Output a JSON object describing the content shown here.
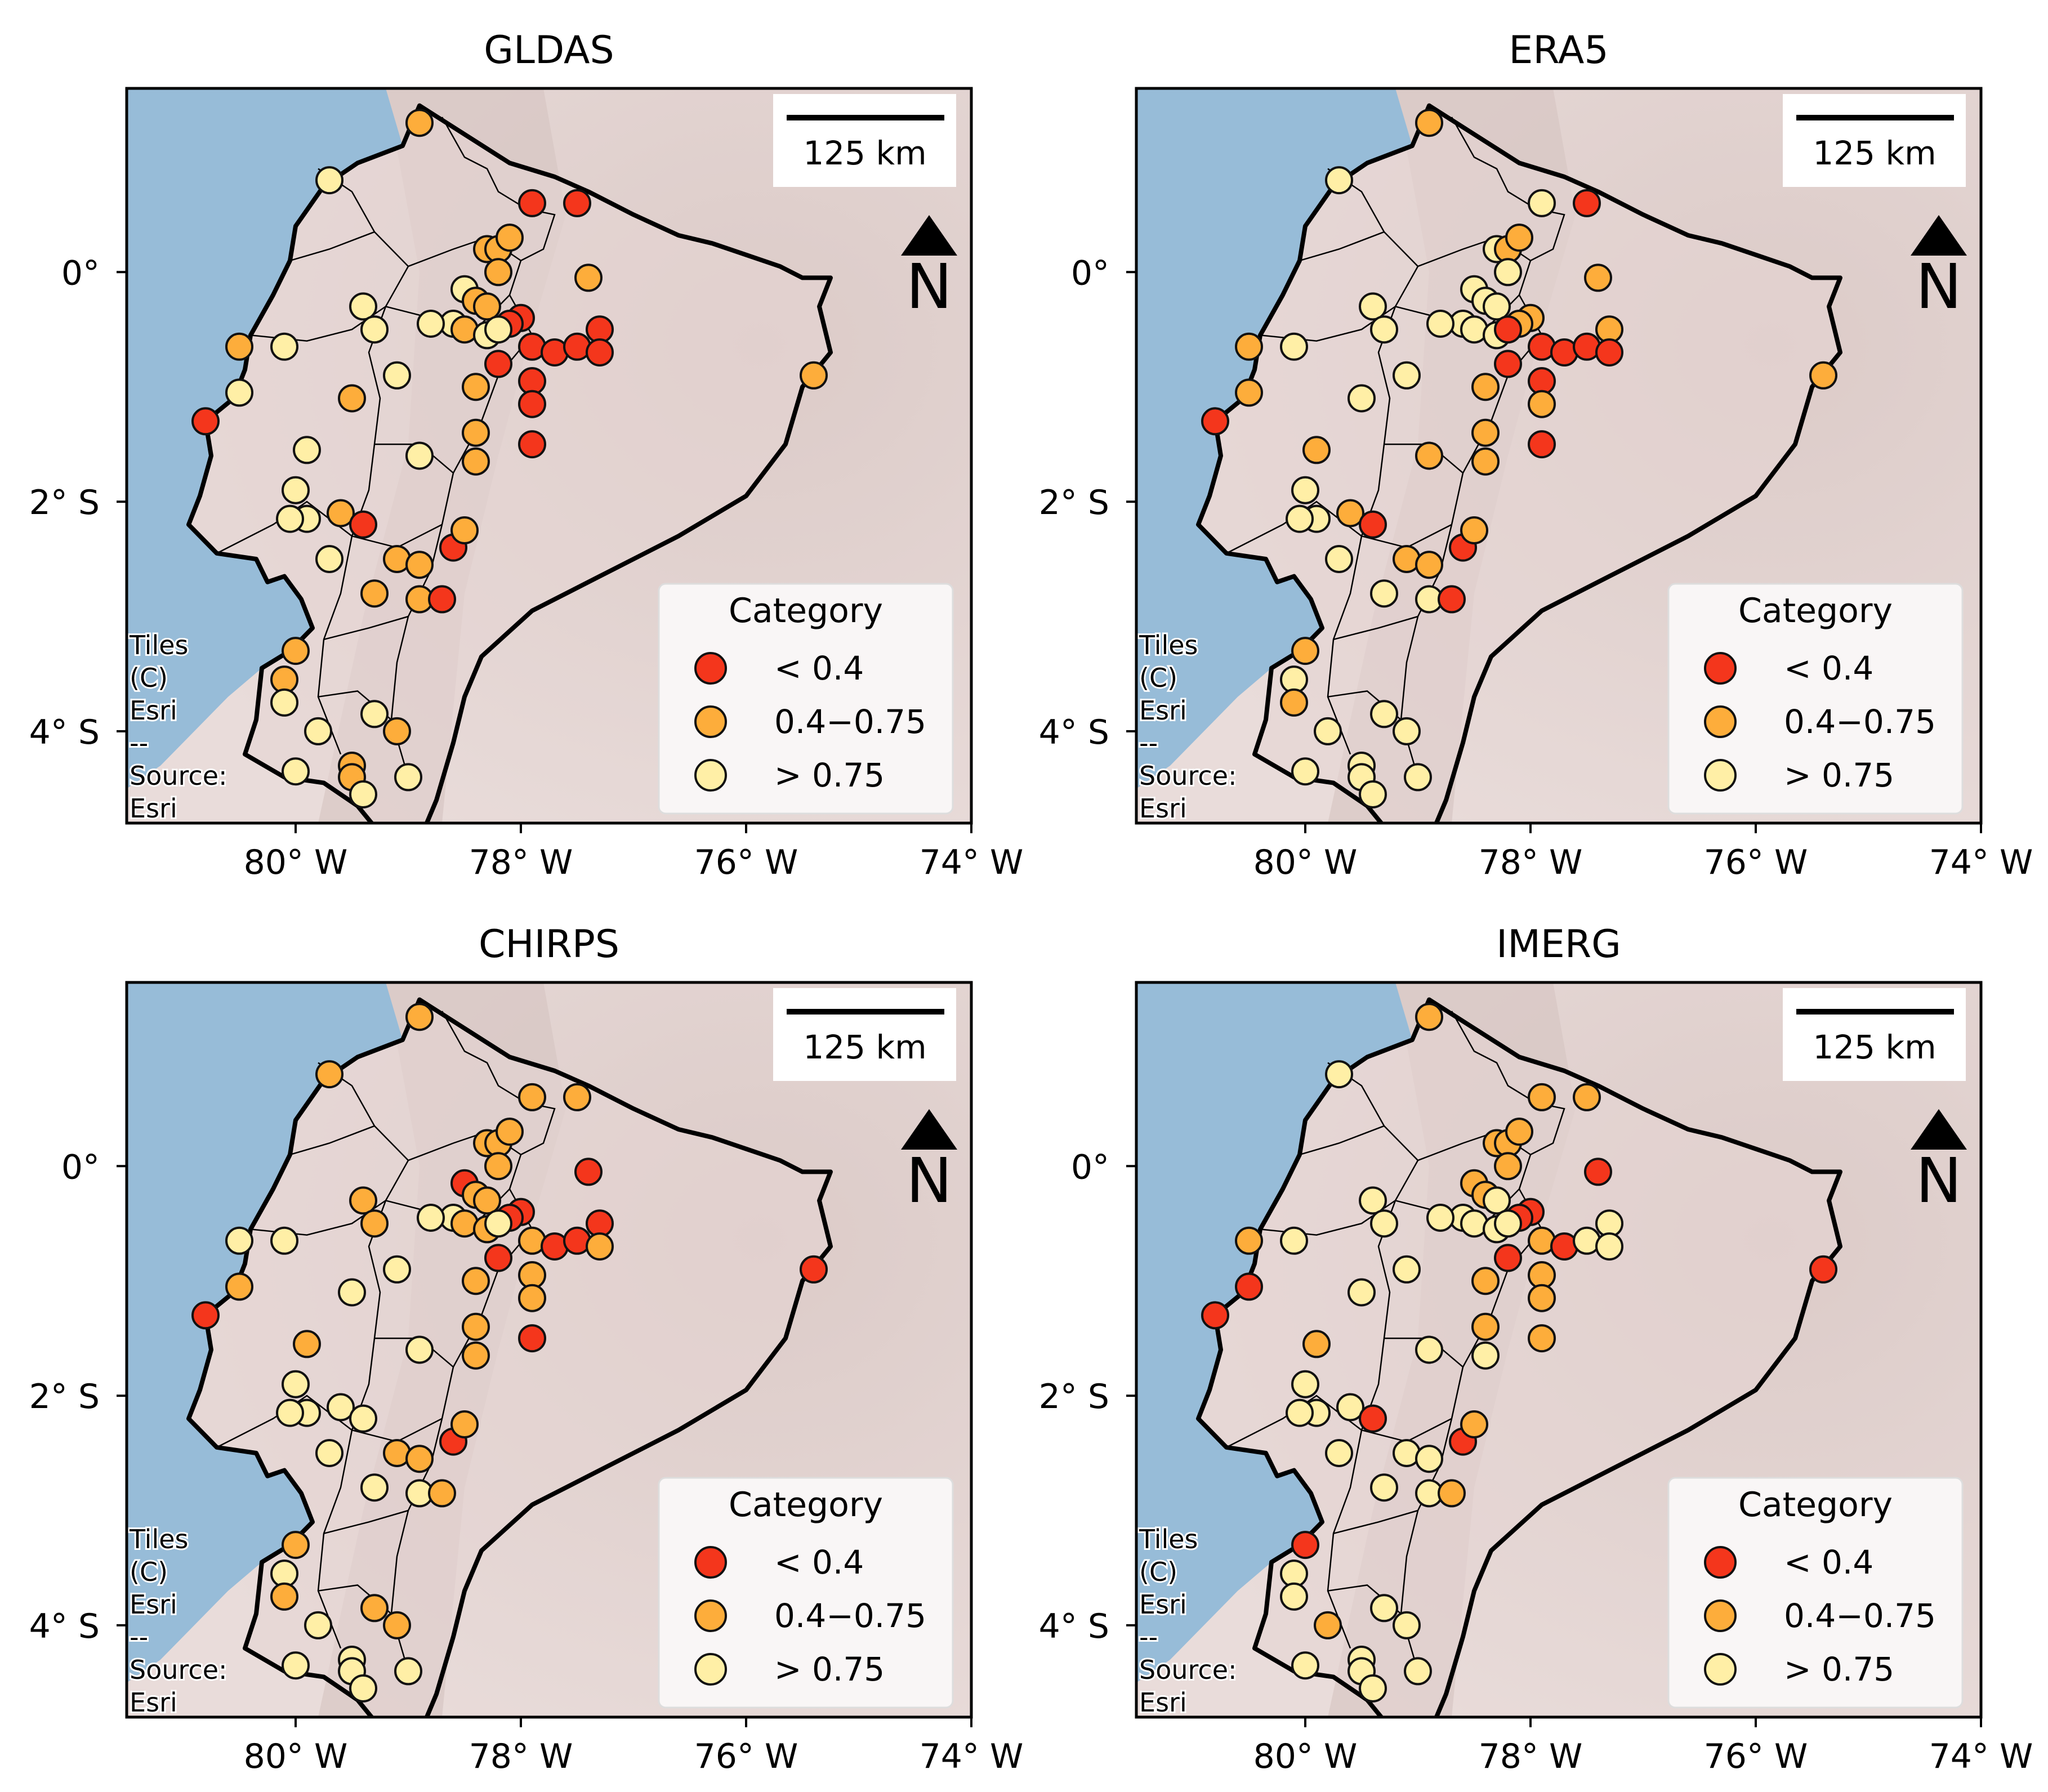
{
  "figure": {
    "panels": [
      {
        "title": "GLDAS"
      },
      {
        "title": "ERA5"
      },
      {
        "title": "CHIRPS"
      },
      {
        "title": "IMERG"
      }
    ],
    "x_ticks": [
      "80° W",
      "78° W",
      "76° W",
      "74° W"
    ],
    "y_ticks": [
      "0°",
      "2° S",
      "4° S"
    ],
    "scale_bar_label": "125 km",
    "north_arrow_label": "N",
    "attribution": [
      "Tiles",
      "(C)",
      "Esri",
      "--",
      "Source:",
      "Esri"
    ],
    "legend": {
      "title": "Category",
      "items": [
        {
          "label": "< 0.4",
          "color": "#f4361c"
        },
        {
          "label": "0.4−0.75",
          "color": "#fdad3b"
        },
        {
          "label": "> 0.75",
          "color": "#ffefa6"
        }
      ]
    },
    "colors": {
      "ocean": "#97bcd8",
      "land": "#e6d6d4",
      "border": "#000000",
      "marker_edge": "#111111"
    }
  },
  "chart_data": [
    {
      "type": "map",
      "title": "GLDAS",
      "xlim": [
        -81.5,
        -74
      ],
      "ylim": [
        -4.8,
        1.6
      ],
      "stations": [
        [
          -79.0,
          -4.4,
          2
        ],
        [
          -78.9,
          1.3,
          1
        ],
        [
          -79.7,
          0.8,
          2
        ],
        [
          -77.9,
          0.6,
          0
        ],
        [
          -77.5,
          0.6,
          0
        ],
        [
          -78.3,
          0.2,
          1
        ],
        [
          -78.2,
          0.2,
          1
        ],
        [
          -78.1,
          0.3,
          1
        ],
        [
          -78.2,
          0.0,
          1
        ],
        [
          -77.4,
          -0.05,
          1
        ],
        [
          -78.5,
          -0.15,
          2
        ],
        [
          -78.4,
          -0.25,
          1
        ],
        [
          -78.3,
          -0.3,
          1
        ],
        [
          -78.0,
          -0.4,
          0
        ],
        [
          -78.1,
          -0.45,
          0
        ],
        [
          -78.6,
          -0.45,
          2
        ],
        [
          -78.5,
          -0.5,
          1
        ],
        [
          -78.3,
          -0.55,
          2
        ],
        [
          -78.2,
          -0.5,
          2
        ],
        [
          -77.9,
          -0.65,
          0
        ],
        [
          -77.7,
          -0.7,
          0
        ],
        [
          -77.5,
          -0.65,
          0
        ],
        [
          -77.3,
          -0.5,
          0
        ],
        [
          -77.3,
          -0.7,
          0
        ],
        [
          -78.2,
          -0.8,
          0
        ],
        [
          -77.9,
          -0.95,
          0
        ],
        [
          -77.9,
          -1.15,
          0
        ],
        [
          -77.9,
          -1.5,
          0
        ],
        [
          -78.4,
          -1.0,
          1
        ],
        [
          -78.4,
          -1.4,
          1
        ],
        [
          -78.4,
          -1.65,
          1
        ],
        [
          -75.4,
          -0.9,
          1
        ],
        [
          -80.5,
          -0.65,
          1
        ],
        [
          -80.1,
          -0.65,
          2
        ],
        [
          -80.5,
          -1.05,
          2
        ],
        [
          -80.8,
          -1.3,
          0
        ],
        [
          -79.4,
          -0.3,
          2
        ],
        [
          -79.3,
          -0.5,
          2
        ],
        [
          -79.1,
          -0.9,
          2
        ],
        [
          -79.5,
          -1.1,
          1
        ],
        [
          -79.9,
          -1.55,
          2
        ],
        [
          -78.9,
          -1.6,
          2
        ],
        [
          -80.0,
          -1.9,
          2
        ],
        [
          -79.9,
          -2.15,
          2
        ],
        [
          -79.6,
          -2.1,
          1
        ],
        [
          -79.4,
          -2.2,
          0
        ],
        [
          -79.7,
          -2.5,
          2
        ],
        [
          -79.1,
          -2.5,
          1
        ],
        [
          -78.9,
          -2.55,
          1
        ],
        [
          -79.3,
          -2.8,
          1
        ],
        [
          -78.9,
          -2.85,
          1
        ],
        [
          -78.7,
          -2.85,
          0
        ],
        [
          -78.6,
          -2.4,
          0
        ],
        [
          -78.5,
          -2.25,
          1
        ],
        [
          -80.0,
          -3.3,
          1
        ],
        [
          -80.1,
          -3.55,
          1
        ],
        [
          -80.1,
          -3.75,
          2
        ],
        [
          -79.3,
          -3.85,
          2
        ],
        [
          -79.1,
          -4.0,
          1
        ],
        [
          -79.8,
          -4.0,
          2
        ],
        [
          -79.5,
          -4.3,
          1
        ],
        [
          -79.5,
          -4.4,
          1
        ],
        [
          -80.0,
          -4.35,
          2
        ],
        [
          -79.4,
          -4.55,
          2
        ],
        [
          -80.05,
          -2.15,
          2
        ],
        [
          -78.8,
          -0.45,
          2
        ]
      ]
    },
    {
      "type": "map",
      "title": "ERA5",
      "xlim": [
        -81.5,
        -74
      ],
      "ylim": [
        -4.8,
        1.6
      ],
      "stations": [
        [
          -79.0,
          -4.4,
          2
        ],
        [
          -78.9,
          1.3,
          1
        ],
        [
          -79.7,
          0.8,
          2
        ],
        [
          -77.9,
          0.6,
          2
        ],
        [
          -77.5,
          0.6,
          0
        ],
        [
          -78.3,
          0.2,
          2
        ],
        [
          -78.2,
          0.2,
          1
        ],
        [
          -78.1,
          0.3,
          1
        ],
        [
          -78.2,
          0.0,
          2
        ],
        [
          -77.4,
          -0.05,
          1
        ],
        [
          -78.5,
          -0.15,
          2
        ],
        [
          -78.4,
          -0.25,
          2
        ],
        [
          -78.3,
          -0.3,
          2
        ],
        [
          -78.0,
          -0.4,
          1
        ],
        [
          -78.1,
          -0.45,
          1
        ],
        [
          -78.6,
          -0.45,
          2
        ],
        [
          -78.5,
          -0.5,
          2
        ],
        [
          -78.3,
          -0.55,
          2
        ],
        [
          -78.2,
          -0.5,
          0
        ],
        [
          -77.9,
          -0.65,
          0
        ],
        [
          -77.7,
          -0.7,
          0
        ],
        [
          -77.5,
          -0.65,
          0
        ],
        [
          -77.3,
          -0.5,
          1
        ],
        [
          -77.3,
          -0.7,
          0
        ],
        [
          -78.2,
          -0.8,
          0
        ],
        [
          -77.9,
          -0.95,
          0
        ],
        [
          -77.9,
          -1.15,
          1
        ],
        [
          -77.9,
          -1.5,
          0
        ],
        [
          -78.4,
          -1.0,
          1
        ],
        [
          -78.4,
          -1.4,
          1
        ],
        [
          -78.4,
          -1.65,
          1
        ],
        [
          -75.4,
          -0.9,
          1
        ],
        [
          -80.5,
          -0.65,
          1
        ],
        [
          -80.1,
          -0.65,
          2
        ],
        [
          -80.5,
          -1.05,
          1
        ],
        [
          -80.8,
          -1.3,
          0
        ],
        [
          -79.4,
          -0.3,
          2
        ],
        [
          -79.3,
          -0.5,
          2
        ],
        [
          -79.1,
          -0.9,
          2
        ],
        [
          -79.5,
          -1.1,
          2
        ],
        [
          -79.9,
          -1.55,
          1
        ],
        [
          -78.9,
          -1.6,
          1
        ],
        [
          -80.0,
          -1.9,
          2
        ],
        [
          -79.9,
          -2.15,
          2
        ],
        [
          -79.6,
          -2.1,
          1
        ],
        [
          -79.4,
          -2.2,
          0
        ],
        [
          -79.7,
          -2.5,
          2
        ],
        [
          -79.1,
          -2.5,
          1
        ],
        [
          -78.9,
          -2.55,
          1
        ],
        [
          -79.3,
          -2.8,
          2
        ],
        [
          -78.9,
          -2.85,
          2
        ],
        [
          -78.7,
          -2.85,
          0
        ],
        [
          -78.6,
          -2.4,
          0
        ],
        [
          -78.5,
          -2.25,
          1
        ],
        [
          -80.0,
          -3.3,
          1
        ],
        [
          -80.1,
          -3.55,
          2
        ],
        [
          -80.1,
          -3.75,
          1
        ],
        [
          -79.3,
          -3.85,
          2
        ],
        [
          -79.1,
          -4.0,
          2
        ],
        [
          -79.8,
          -4.0,
          2
        ],
        [
          -79.5,
          -4.3,
          2
        ],
        [
          -79.5,
          -4.4,
          2
        ],
        [
          -80.0,
          -4.35,
          2
        ],
        [
          -79.4,
          -4.55,
          2
        ],
        [
          -80.05,
          -2.15,
          2
        ],
        [
          -78.8,
          -0.45,
          2
        ]
      ]
    },
    {
      "type": "map",
      "title": "CHIRPS",
      "xlim": [
        -81.5,
        -74
      ],
      "ylim": [
        -4.8,
        1.6
      ],
      "stations": [
        [
          -79.0,
          -4.4,
          2
        ],
        [
          -78.9,
          1.3,
          1
        ],
        [
          -79.7,
          0.8,
          1
        ],
        [
          -77.9,
          0.6,
          1
        ],
        [
          -77.5,
          0.6,
          1
        ],
        [
          -78.3,
          0.2,
          1
        ],
        [
          -78.2,
          0.2,
          1
        ],
        [
          -78.1,
          0.3,
          1
        ],
        [
          -78.2,
          0.0,
          1
        ],
        [
          -77.4,
          -0.05,
          0
        ],
        [
          -78.5,
          -0.15,
          0
        ],
        [
          -78.4,
          -0.25,
          1
        ],
        [
          -78.3,
          -0.3,
          1
        ],
        [
          -78.0,
          -0.4,
          0
        ],
        [
          -78.1,
          -0.45,
          0
        ],
        [
          -78.6,
          -0.45,
          2
        ],
        [
          -78.5,
          -0.5,
          1
        ],
        [
          -78.3,
          -0.55,
          1
        ],
        [
          -78.2,
          -0.5,
          2
        ],
        [
          -77.9,
          -0.65,
          1
        ],
        [
          -77.7,
          -0.7,
          0
        ],
        [
          -77.5,
          -0.65,
          0
        ],
        [
          -77.3,
          -0.5,
          0
        ],
        [
          -77.3,
          -0.7,
          1
        ],
        [
          -78.2,
          -0.8,
          0
        ],
        [
          -77.9,
          -0.95,
          1
        ],
        [
          -77.9,
          -1.15,
          1
        ],
        [
          -77.9,
          -1.5,
          0
        ],
        [
          -78.4,
          -1.0,
          1
        ],
        [
          -78.4,
          -1.4,
          1
        ],
        [
          -78.4,
          -1.65,
          1
        ],
        [
          -75.4,
          -0.9,
          0
        ],
        [
          -80.5,
          -0.65,
          2
        ],
        [
          -80.1,
          -0.65,
          2
        ],
        [
          -80.5,
          -1.05,
          1
        ],
        [
          -80.8,
          -1.3,
          0
        ],
        [
          -79.4,
          -0.3,
          1
        ],
        [
          -79.3,
          -0.5,
          1
        ],
        [
          -79.1,
          -0.9,
          2
        ],
        [
          -79.5,
          -1.1,
          2
        ],
        [
          -79.9,
          -1.55,
          1
        ],
        [
          -78.9,
          -1.6,
          2
        ],
        [
          -80.0,
          -1.9,
          2
        ],
        [
          -79.9,
          -2.15,
          2
        ],
        [
          -79.6,
          -2.1,
          2
        ],
        [
          -79.4,
          -2.2,
          2
        ],
        [
          -79.7,
          -2.5,
          2
        ],
        [
          -79.1,
          -2.5,
          1
        ],
        [
          -78.9,
          -2.55,
          1
        ],
        [
          -79.3,
          -2.8,
          2
        ],
        [
          -78.9,
          -2.85,
          2
        ],
        [
          -78.7,
          -2.85,
          1
        ],
        [
          -78.6,
          -2.4,
          0
        ],
        [
          -78.5,
          -2.25,
          1
        ],
        [
          -80.0,
          -3.3,
          1
        ],
        [
          -80.1,
          -3.55,
          2
        ],
        [
          -80.1,
          -3.75,
          1
        ],
        [
          -79.3,
          -3.85,
          1
        ],
        [
          -79.1,
          -4.0,
          1
        ],
        [
          -79.8,
          -4.0,
          2
        ],
        [
          -79.5,
          -4.3,
          2
        ],
        [
          -79.5,
          -4.4,
          2
        ],
        [
          -80.0,
          -4.35,
          2
        ],
        [
          -79.4,
          -4.55,
          2
        ],
        [
          -80.05,
          -2.15,
          2
        ],
        [
          -78.8,
          -0.45,
          2
        ]
      ]
    },
    {
      "type": "map",
      "title": "IMERG",
      "xlim": [
        -81.5,
        -74
      ],
      "ylim": [
        -4.8,
        1.6
      ],
      "stations": [
        [
          -79.0,
          -4.4,
          2
        ],
        [
          -78.9,
          1.3,
          1
        ],
        [
          -79.7,
          0.8,
          2
        ],
        [
          -77.9,
          0.6,
          1
        ],
        [
          -77.5,
          0.6,
          1
        ],
        [
          -78.3,
          0.2,
          1
        ],
        [
          -78.2,
          0.2,
          1
        ],
        [
          -78.1,
          0.3,
          1
        ],
        [
          -78.2,
          0.0,
          1
        ],
        [
          -77.4,
          -0.05,
          0
        ],
        [
          -78.5,
          -0.15,
          1
        ],
        [
          -78.4,
          -0.25,
          1
        ],
        [
          -78.3,
          -0.3,
          2
        ],
        [
          -78.0,
          -0.4,
          0
        ],
        [
          -78.1,
          -0.45,
          0
        ],
        [
          -78.6,
          -0.45,
          2
        ],
        [
          -78.5,
          -0.5,
          2
        ],
        [
          -78.3,
          -0.55,
          2
        ],
        [
          -78.2,
          -0.5,
          2
        ],
        [
          -77.9,
          -0.65,
          1
        ],
        [
          -77.7,
          -0.7,
          0
        ],
        [
          -77.5,
          -0.65,
          2
        ],
        [
          -77.3,
          -0.5,
          2
        ],
        [
          -77.3,
          -0.7,
          2
        ],
        [
          -78.2,
          -0.8,
          0
        ],
        [
          -77.9,
          -0.95,
          1
        ],
        [
          -77.9,
          -1.15,
          1
        ],
        [
          -77.9,
          -1.5,
          1
        ],
        [
          -78.4,
          -1.0,
          1
        ],
        [
          -78.4,
          -1.4,
          1
        ],
        [
          -78.4,
          -1.65,
          2
        ],
        [
          -75.4,
          -0.9,
          0
        ],
        [
          -80.5,
          -0.65,
          1
        ],
        [
          -80.1,
          -0.65,
          2
        ],
        [
          -80.5,
          -1.05,
          0
        ],
        [
          -80.8,
          -1.3,
          0
        ],
        [
          -79.4,
          -0.3,
          2
        ],
        [
          -79.3,
          -0.5,
          2
        ],
        [
          -79.1,
          -0.9,
          2
        ],
        [
          -79.5,
          -1.1,
          2
        ],
        [
          -79.9,
          -1.55,
          1
        ],
        [
          -78.9,
          -1.6,
          2
        ],
        [
          -80.0,
          -1.9,
          2
        ],
        [
          -79.9,
          -2.15,
          2
        ],
        [
          -79.6,
          -2.1,
          2
        ],
        [
          -79.4,
          -2.2,
          0
        ],
        [
          -79.7,
          -2.5,
          2
        ],
        [
          -79.1,
          -2.5,
          2
        ],
        [
          -78.9,
          -2.55,
          2
        ],
        [
          -79.3,
          -2.8,
          2
        ],
        [
          -78.9,
          -2.85,
          2
        ],
        [
          -78.7,
          -2.85,
          1
        ],
        [
          -78.6,
          -2.4,
          0
        ],
        [
          -78.5,
          -2.25,
          1
        ],
        [
          -80.0,
          -3.3,
          0
        ],
        [
          -80.1,
          -3.55,
          2
        ],
        [
          -80.1,
          -3.75,
          2
        ],
        [
          -79.3,
          -3.85,
          2
        ],
        [
          -79.1,
          -4.0,
          2
        ],
        [
          -79.8,
          -4.0,
          1
        ],
        [
          -79.5,
          -4.3,
          2
        ],
        [
          -79.5,
          -4.4,
          2
        ],
        [
          -80.0,
          -4.35,
          2
        ],
        [
          -79.4,
          -4.55,
          2
        ],
        [
          -80.05,
          -2.15,
          2
        ],
        [
          -78.8,
          -0.45,
          2
        ]
      ]
    }
  ]
}
